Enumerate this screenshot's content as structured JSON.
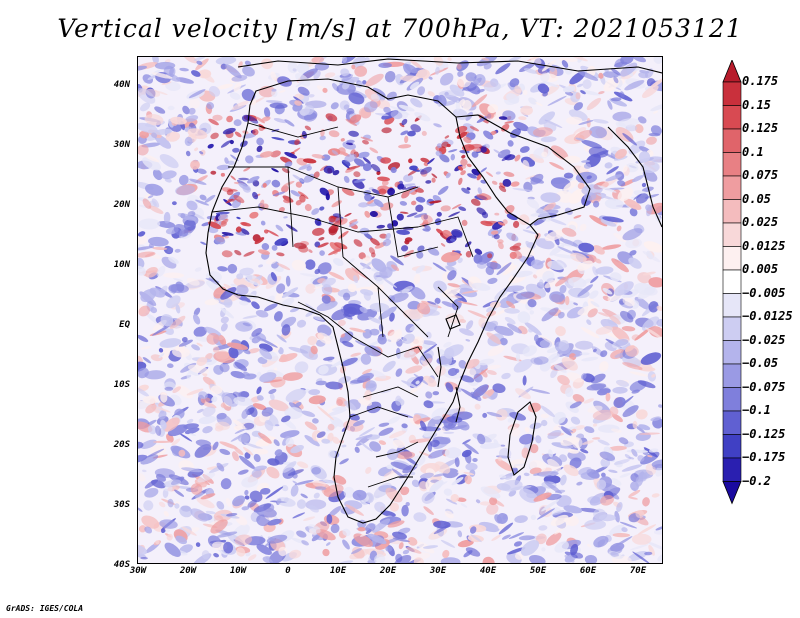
{
  "title": "Vertical velocity [m/s] at 700hPa, VT: 2021053121",
  "map": {
    "variable": "Vertical velocity",
    "units": "m/s",
    "level": "700hPa",
    "valid_time": "2021053121",
    "lat_labels": [
      "40N",
      "30N",
      "20N",
      "10N",
      "EQ",
      "10S",
      "20S",
      "30S",
      "40S"
    ],
    "lon_labels": [
      "30W",
      "20W",
      "10W",
      "0",
      "10E",
      "20E",
      "30E",
      "40E",
      "50E",
      "60E",
      "70E"
    ]
  },
  "colorbar": {
    "labels": [
      "0.175",
      "0.15",
      "0.125",
      "0.1",
      "0.075",
      "0.05",
      "0.025",
      "0.0125",
      "0.005",
      "−0.005",
      "−0.0125",
      "−0.025",
      "−0.05",
      "−0.075",
      "−0.1",
      "−0.125",
      "−0.175",
      "−0.2"
    ],
    "colors": [
      "#b71c2c",
      "#c9303c",
      "#d84a52",
      "#e0646a",
      "#e88084",
      "#ef9da0",
      "#f4bcbe",
      "#f8d8d9",
      "#fdf0f0",
      "#ffffff",
      "#e6e6f8",
      "#cdcdf2",
      "#b4b4ec",
      "#9a9ae4",
      "#7f7fdc",
      "#6060d2",
      "#4040c4",
      "#2a1fb0",
      "#1a0aa0"
    ]
  },
  "footer": "GrADS: IGES/COLA"
}
